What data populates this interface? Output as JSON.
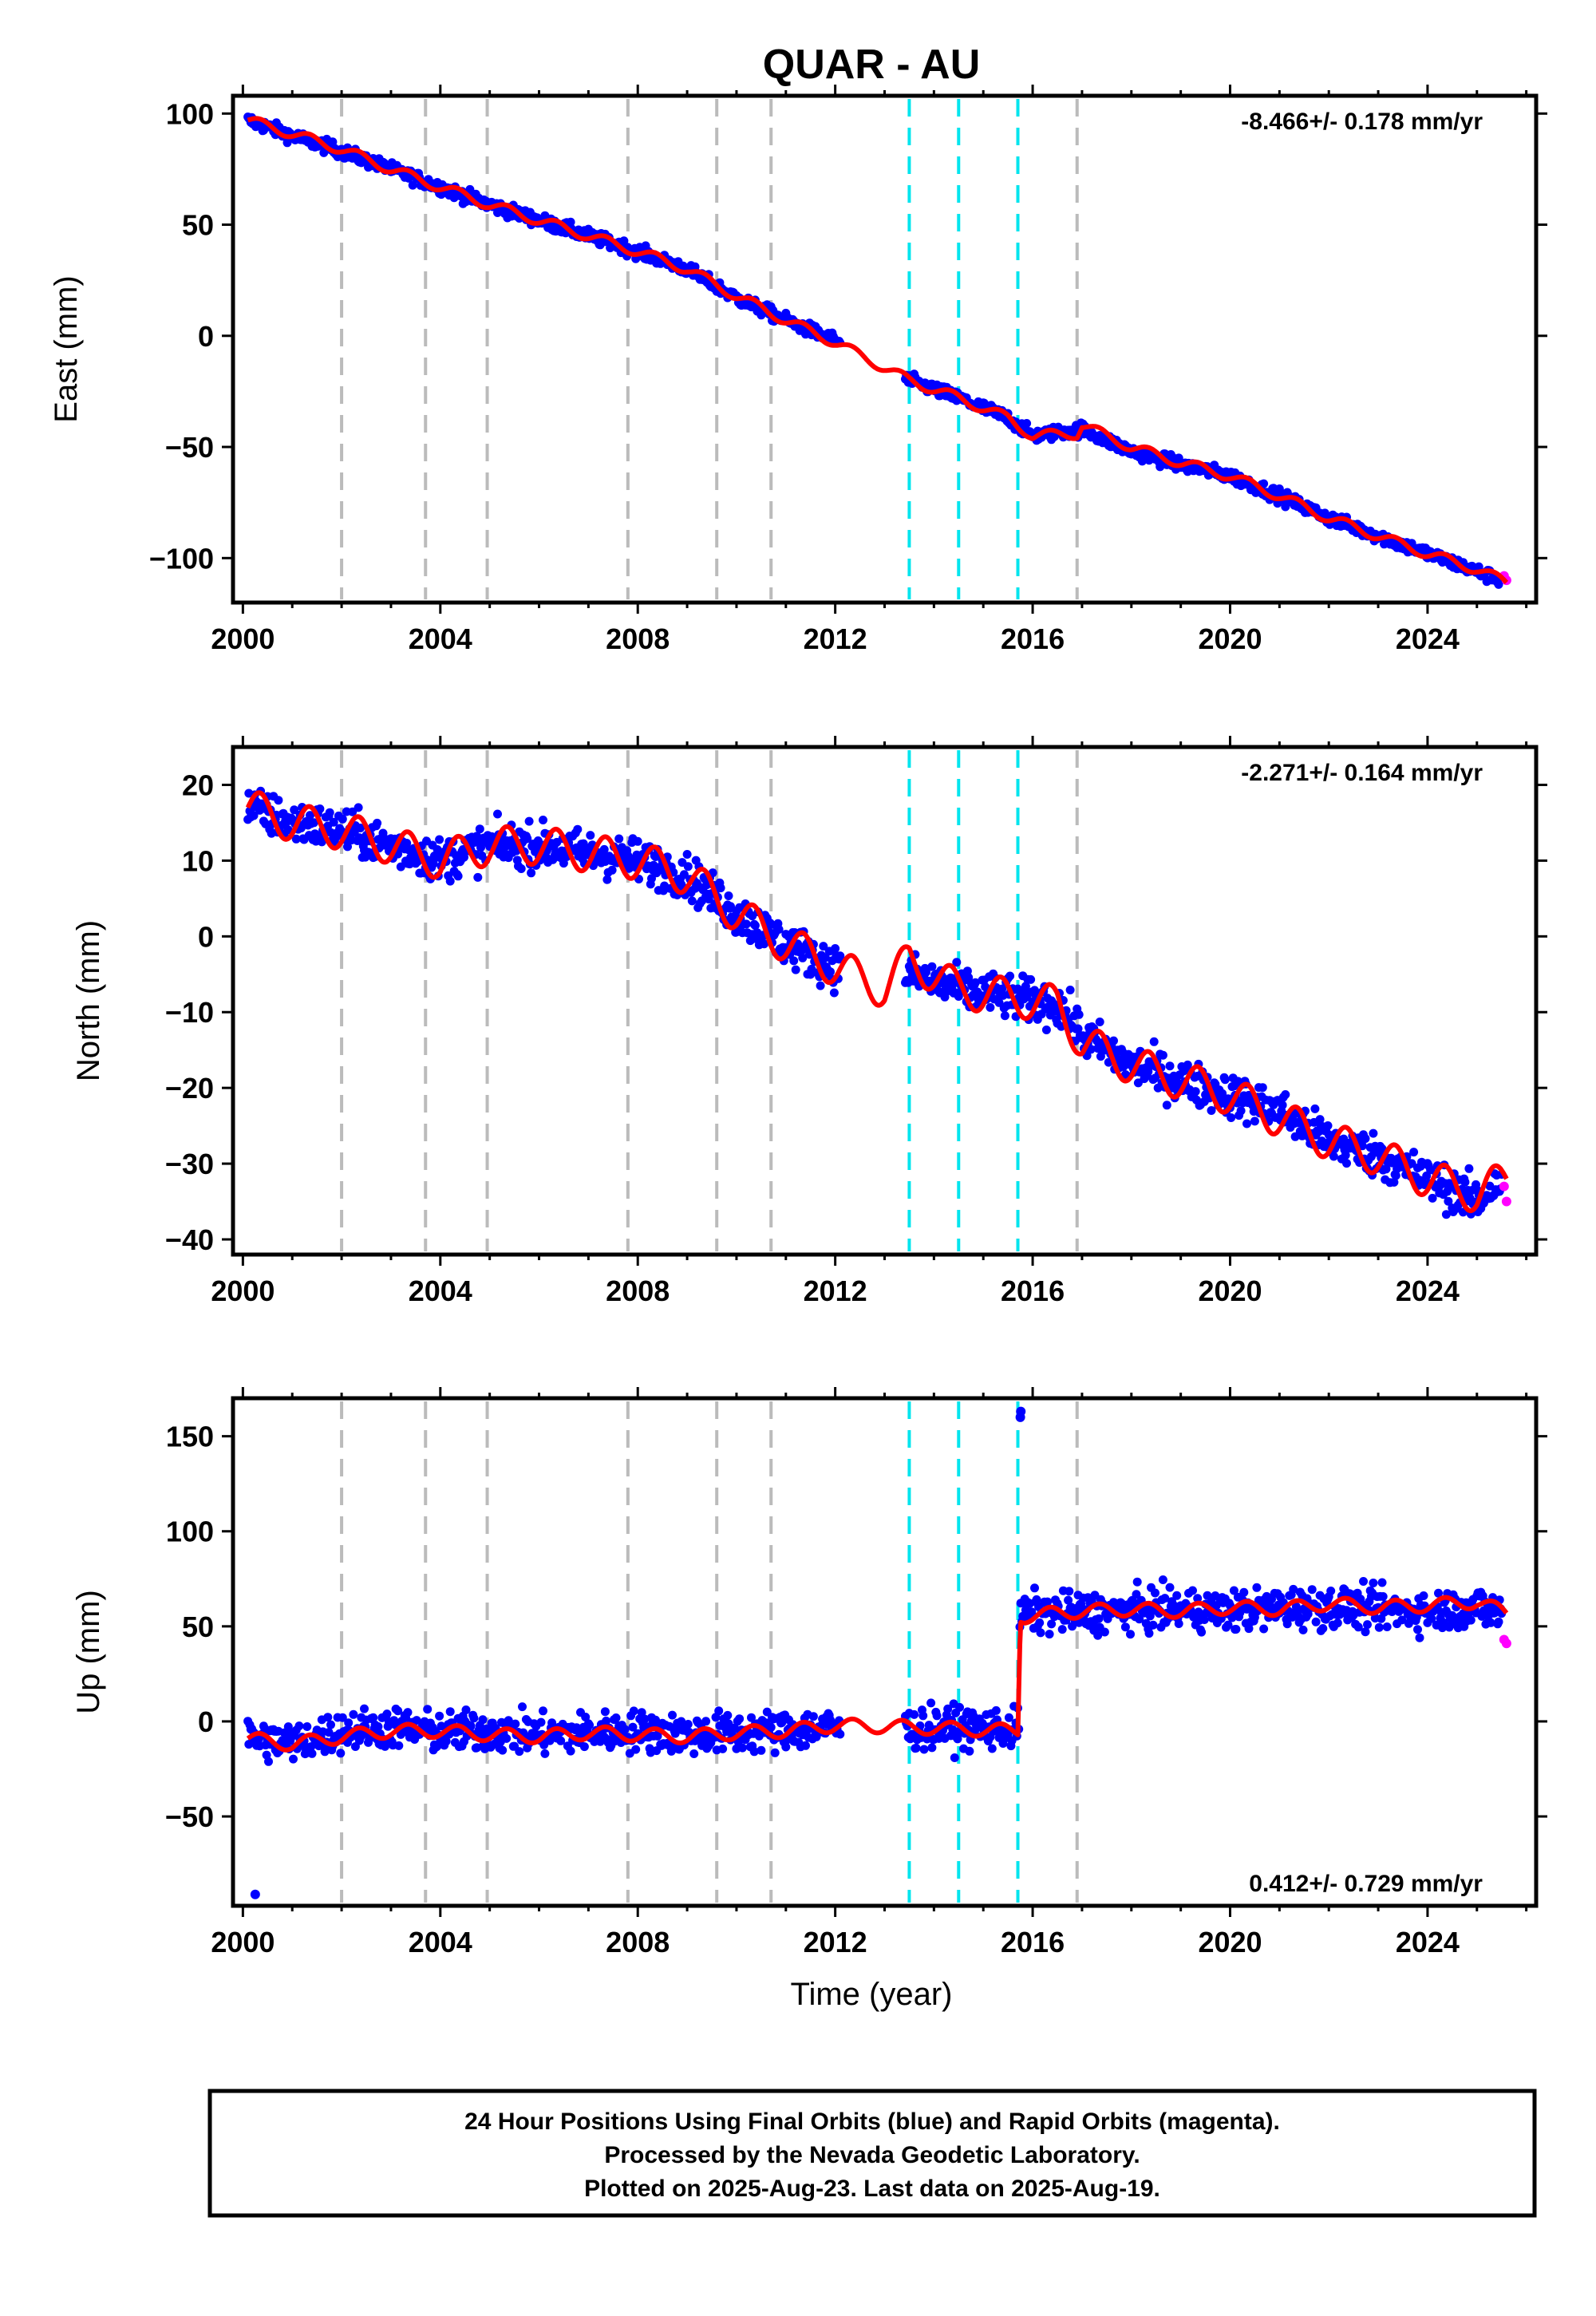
{
  "chart_data": [
    {
      "type": "scatter",
      "title": "QUAR - AU",
      "ylabel": "East (mm)",
      "xlabel": "",
      "xlim": [
        1999.8,
        2026.2
      ],
      "ylim": [
        -120,
        108
      ],
      "xticks": [
        2000,
        2004,
        2008,
        2012,
        2016,
        2020,
        2024
      ],
      "yticks": [
        100,
        50,
        0,
        -50,
        -100
      ],
      "ytick_labels": [
        "100",
        "50",
        "0",
        "−50",
        "−100"
      ],
      "rate_label": "-8.466+/- 0.178 mm/yr",
      "rate_position": "top-right",
      "series": [
        {
          "name": "Final Orbits",
          "color": "#0000ff",
          "x": [
            2000.1,
            2001.0,
            2002.0,
            2003.0,
            2004.0,
            2005.0,
            2006.0,
            2007.0,
            2008.0,
            2009.0,
            2010.0,
            2011.0,
            2012.0,
            2013.5,
            2014.5,
            2015.5,
            2016.0,
            2017.0,
            2018.0,
            2019.0,
            2020.0,
            2021.0,
            2022.0,
            2023.0,
            2024.0,
            2025.0,
            2025.5
          ],
          "y": [
            97,
            90,
            83,
            75,
            67,
            59,
            52,
            45,
            38,
            30,
            17,
            7,
            -2,
            -20,
            -28,
            -37,
            -45,
            -42,
            -52,
            -58,
            -63,
            -72,
            -82,
            -90,
            -98,
            -106,
            -110
          ]
        },
        {
          "name": "Rapid Orbits",
          "color": "#ff00ff",
          "x": [
            2025.55,
            2025.6
          ],
          "y": [
            -108,
            -110
          ]
        },
        {
          "name": "Model",
          "color": "#ff0000",
          "x": [
            2000.1,
            2001.0,
            2002.0,
            2003.0,
            2004.0,
            2005.0,
            2006.0,
            2007.0,
            2008.0,
            2009.0,
            2010.0,
            2011.0,
            2012.0,
            2013.5,
            2014.5,
            2015.5,
            2016.0,
            2016.9,
            2017.0,
            2018.0,
            2019.0,
            2020.0,
            2021.0,
            2022.0,
            2023.0,
            2024.0,
            2025.0,
            2025.6
          ],
          "y": [
            97,
            91,
            84,
            75,
            67,
            59,
            52,
            45,
            38,
            30,
            18,
            7,
            -3,
            -20,
            -28,
            -37,
            -45,
            -44,
            -40,
            -50,
            -57,
            -63,
            -72,
            -82,
            -90,
            -98,
            -105,
            -111
          ]
        }
      ],
      "event_lines": {
        "gray": [
          2002.0,
          2003.7,
          2004.95,
          2007.8,
          2009.6,
          2010.7,
          2016.9
        ],
        "cyan": [
          2013.5,
          2014.5,
          2015.7
        ]
      }
    },
    {
      "type": "scatter",
      "title": "",
      "ylabel": "North (mm)",
      "xlabel": "",
      "xlim": [
        1999.8,
        2026.2
      ],
      "ylim": [
        -42,
        25
      ],
      "xticks": [
        2000,
        2004,
        2008,
        2012,
        2016,
        2020,
        2024
      ],
      "yticks": [
        20,
        10,
        0,
        -10,
        -20,
        -30,
        -40
      ],
      "ytick_labels": [
        "20",
        "10",
        "0",
        "−10",
        "−20",
        "−30",
        "−40"
      ],
      "rate_label": "-2.271+/- 0.164 mm/yr",
      "rate_position": "top-right",
      "series": [
        {
          "name": "Final Orbits",
          "color": "#0000ff",
          "x": [
            2000.1,
            2001.0,
            2002.0,
            2003.0,
            2004.0,
            2005.0,
            2006.0,
            2007.0,
            2008.0,
            2009.0,
            2010.0,
            2011.0,
            2012.0,
            2013.5,
            2014.5,
            2015.5,
            2016.5,
            2017.0,
            2018.0,
            2019.0,
            2020.0,
            2021.0,
            2022.0,
            2023.0,
            2024.0,
            2025.0,
            2025.5
          ],
          "y": [
            17,
            15,
            14,
            12,
            10,
            12,
            12,
            11,
            10,
            8,
            3,
            -1,
            -4,
            -5,
            -7,
            -8,
            -9,
            -13,
            -17,
            -19,
            -21,
            -23,
            -27,
            -29,
            -32,
            -35,
            -32
          ]
        },
        {
          "name": "Rapid Orbits",
          "color": "#ff00ff",
          "x": [
            2025.55,
            2025.6
          ],
          "y": [
            -33,
            -35
          ]
        },
        {
          "name": "Model",
          "color": "#ff0000",
          "x": [
            2000.1,
            2001.0,
            2002.0,
            2003.0,
            2004.0,
            2005.0,
            2006.0,
            2007.0,
            2008.0,
            2009.0,
            2010.0,
            2011.0,
            2012.0,
            2013.0,
            2013.5,
            2014.5,
            2015.5,
            2016.5,
            2017.0,
            2018.0,
            2019.0,
            2020.0,
            2021.0,
            2022.0,
            2023.0,
            2024.0,
            2025.0,
            2025.6
          ],
          "y": [
            17,
            15,
            14,
            12,
            10,
            12,
            12,
            11,
            10,
            8,
            3,
            -1,
            -4,
            -7,
            -3,
            -7,
            -8,
            -9,
            -14,
            -17,
            -19,
            -21,
            -24,
            -27,
            -29,
            -32,
            -34,
            -32
          ]
        }
      ],
      "event_lines": {
        "gray": [
          2002.0,
          2003.7,
          2004.95,
          2007.8,
          2009.6,
          2010.7,
          2016.9
        ],
        "cyan": [
          2013.5,
          2014.5,
          2015.7
        ]
      }
    },
    {
      "type": "scatter",
      "title": "",
      "ylabel": "Up (mm)",
      "xlabel": "Time (year)",
      "xlim": [
        1999.8,
        2026.2
      ],
      "ylim": [
        -97,
        170
      ],
      "xticks": [
        2000,
        2004,
        2008,
        2012,
        2016,
        2020,
        2024
      ],
      "yticks": [
        150,
        100,
        50,
        0,
        -50
      ],
      "ytick_labels": [
        "150",
        "100",
        "50",
        "0",
        "−50"
      ],
      "rate_label": "0.412+/- 0.729 mm/yr",
      "rate_position": "bottom-right",
      "series": [
        {
          "name": "Final Orbits",
          "color": "#0000ff",
          "x": [
            2000.1,
            2001.0,
            2002.0,
            2003.0,
            2004.0,
            2005.0,
            2006.0,
            2007.0,
            2008.0,
            2009.0,
            2010.0,
            2011.0,
            2012.0,
            2013.5,
            2014.5,
            2015.5,
            2015.75,
            2016.5,
            2017.0,
            2018.0,
            2019.0,
            2020.0,
            2021.0,
            2022.0,
            2023.0,
            2024.0,
            2025.0,
            2025.5
          ],
          "y": [
            -8,
            -12,
            -5,
            -3,
            -6,
            -5,
            -7,
            -6,
            -5,
            -7,
            -6,
            -5,
            -3,
            -4,
            -3,
            -4,
            160,
            57,
            57,
            58,
            59,
            58,
            60,
            60,
            59,
            58,
            60,
            57
          ]
        },
        {
          "name": "Rapid Orbits",
          "color": "#ff00ff",
          "x": [
            2025.55,
            2025.6
          ],
          "y": [
            43,
            41
          ]
        },
        {
          "name": "Model",
          "color": "#ff0000",
          "x": [
            2000.1,
            2001.0,
            2002.0,
            2003.0,
            2004.0,
            2005.0,
            2006.0,
            2007.0,
            2008.0,
            2009.0,
            2010.0,
            2011.0,
            2012.0,
            2013.5,
            2014.5,
            2015.7,
            2015.75,
            2016.5,
            2017.0,
            2018.0,
            2019.0,
            2020.0,
            2021.0,
            2022.0,
            2023.0,
            2024.0,
            2025.0,
            2025.6
          ],
          "y": [
            -9,
            -12,
            -8,
            -5,
            -5,
            -7,
            -8,
            -6,
            -7,
            -8,
            -6,
            -5,
            -2,
            -3,
            -4,
            -5,
            55,
            57,
            58,
            59,
            58,
            60,
            59,
            62,
            60,
            61,
            63,
            57
          ]
        }
      ],
      "event_lines": {
        "gray": [
          2002.0,
          2003.7,
          2004.95,
          2007.8,
          2009.6,
          2010.7,
          2016.9
        ],
        "cyan": [
          2013.5,
          2014.5,
          2015.7
        ]
      }
    }
  ],
  "caption": {
    "line1": "24 Hour Positions Using Final Orbits (blue) and Rapid Orbits (magenta).",
    "line2": "Processed by the Nevada Geodetic Laboratory.",
    "line3": "Plotted on 2025-Aug-23. Last data on 2025-Aug-19."
  },
  "colors": {
    "final": "#0000ff",
    "rapid": "#ff00ff",
    "model": "#ff0000",
    "gray_event": "#bbbbbb",
    "cyan_event": "#00e5ee"
  }
}
